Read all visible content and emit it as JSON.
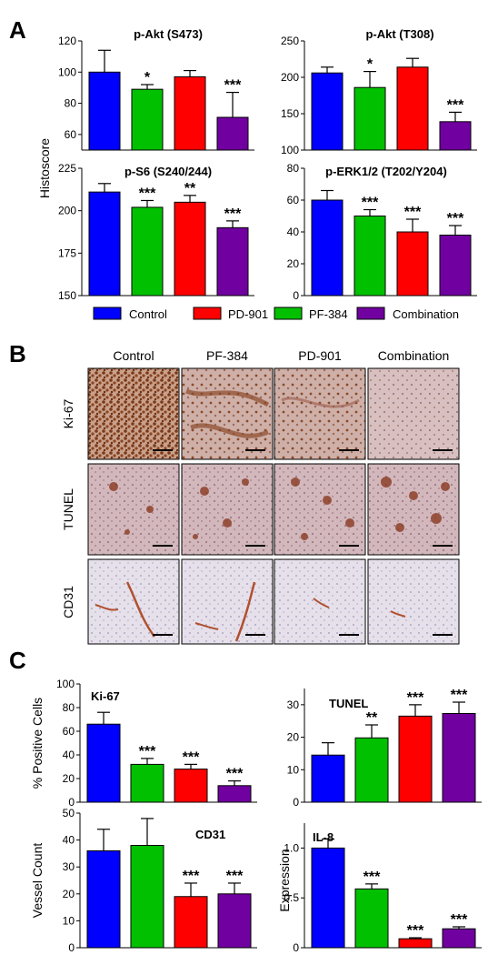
{
  "panels": {
    "a": "A",
    "b": "B",
    "c": "C"
  },
  "colors": {
    "blue": "#0000ff",
    "green": "#00c000",
    "red": "#ff0000",
    "purple": "#7000a0"
  },
  "panel_a": {
    "ylabel": "Histoscore",
    "legend": [
      {
        "label": "Control",
        "color": "#0000ff"
      },
      {
        "label": "PD-901",
        "color": "#ff0000"
      },
      {
        "label": "PF-384",
        "color": "#00c000"
      },
      {
        "label": "Combination",
        "color": "#7000a0"
      }
    ]
  },
  "panel_b": {
    "columns": [
      "Control",
      "PF-384",
      "PD-901",
      "Combination"
    ],
    "rows": [
      "Ki-67",
      "TUNEL",
      "CD31"
    ]
  },
  "chart_data": [
    {
      "type": "bar",
      "title": "p-Akt (S473)",
      "ylabel": "",
      "ylim": [
        50,
        120
      ],
      "yticks": [
        60,
        80,
        100,
        120
      ],
      "colors": [
        "#0000ff",
        "#00c000",
        "#ff0000",
        "#7000a0"
      ],
      "values": [
        100,
        89,
        97,
        71
      ],
      "errors": [
        14,
        3,
        4,
        16
      ],
      "significance": [
        "",
        "*",
        "",
        "***"
      ]
    },
    {
      "type": "bar",
      "title": "p-Akt (T308)",
      "ylabel": "",
      "ylim": [
        100,
        250
      ],
      "yticks": [
        100,
        150,
        200,
        250
      ],
      "colors": [
        "#0000ff",
        "#00c000",
        "#ff0000",
        "#7000a0"
      ],
      "values": [
        206,
        186,
        214,
        139
      ],
      "errors": [
        8,
        22,
        12,
        13
      ],
      "significance": [
        "",
        "*",
        "",
        "***"
      ]
    },
    {
      "type": "bar",
      "title": "p-S6 (S240/244)",
      "ylabel": "",
      "ylim": [
        150,
        225
      ],
      "yticks": [
        150,
        175,
        200,
        225
      ],
      "colors": [
        "#0000ff",
        "#00c000",
        "#ff0000",
        "#7000a0"
      ],
      "values": [
        211,
        202,
        205,
        190
      ],
      "errors": [
        5,
        4,
        4,
        4
      ],
      "significance": [
        "",
        "***",
        "**",
        "***"
      ]
    },
    {
      "type": "bar",
      "title": "p-ERK1/2 (T202/Y204)",
      "ylabel": "",
      "ylim": [
        0,
        80
      ],
      "yticks": [
        0,
        20,
        40,
        60,
        80
      ],
      "colors": [
        "#0000ff",
        "#00c000",
        "#ff0000",
        "#7000a0"
      ],
      "values": [
        60,
        50,
        40,
        38
      ],
      "errors": [
        6,
        4,
        8,
        6
      ],
      "significance": [
        "",
        "***",
        "***",
        "***"
      ]
    },
    {
      "type": "bar",
      "title": "Ki-67",
      "ylabel": "% Positive Cells",
      "ylim": [
        0,
        100
      ],
      "yticks": [
        0,
        20,
        40,
        60,
        80,
        100
      ],
      "colors": [
        "#0000ff",
        "#00c000",
        "#ff0000",
        "#7000a0"
      ],
      "values": [
        66,
        32,
        28,
        14
      ],
      "errors": [
        10,
        5,
        4,
        4
      ],
      "significance": [
        "",
        "***",
        "***",
        "***"
      ]
    },
    {
      "type": "bar",
      "title": "TUNEL",
      "ylabel": "",
      "ylim": [
        0,
        35
      ],
      "yticks": [
        0,
        10,
        20,
        30
      ],
      "colors": [
        "#0000ff",
        "#00c000",
        "#ff0000",
        "#7000a0"
      ],
      "values": [
        14.5,
        19.8,
        26.5,
        27.3
      ],
      "errors": [
        3.8,
        4,
        3.5,
        3.5
      ],
      "significance": [
        "",
        "**",
        "***",
        "***"
      ]
    },
    {
      "type": "bar",
      "title": "CD31",
      "ylabel": "Vessel Count",
      "ylim": [
        0,
        50
      ],
      "yticks": [
        0,
        10,
        20,
        30,
        40,
        50
      ],
      "colors": [
        "#0000ff",
        "#00c000",
        "#ff0000",
        "#7000a0"
      ],
      "values": [
        36,
        38,
        19,
        20
      ],
      "errors": [
        8,
        10,
        5,
        4
      ],
      "significance": [
        "",
        "",
        "***",
        "***"
      ]
    },
    {
      "type": "bar",
      "title": "IL-8",
      "ylabel": "Expression",
      "ylim": [
        0,
        1.25
      ],
      "yticks": [
        "0",
        "0.5",
        "1.0"
      ],
      "colors": [
        "#0000ff",
        "#00c000",
        "#ff0000",
        "#7000a0"
      ],
      "values": [
        1.0,
        0.59,
        0.09,
        0.19
      ],
      "errors": [
        0.09,
        0.05,
        0.01,
        0.02
      ],
      "significance": [
        "",
        "***",
        "***",
        "***"
      ]
    }
  ]
}
